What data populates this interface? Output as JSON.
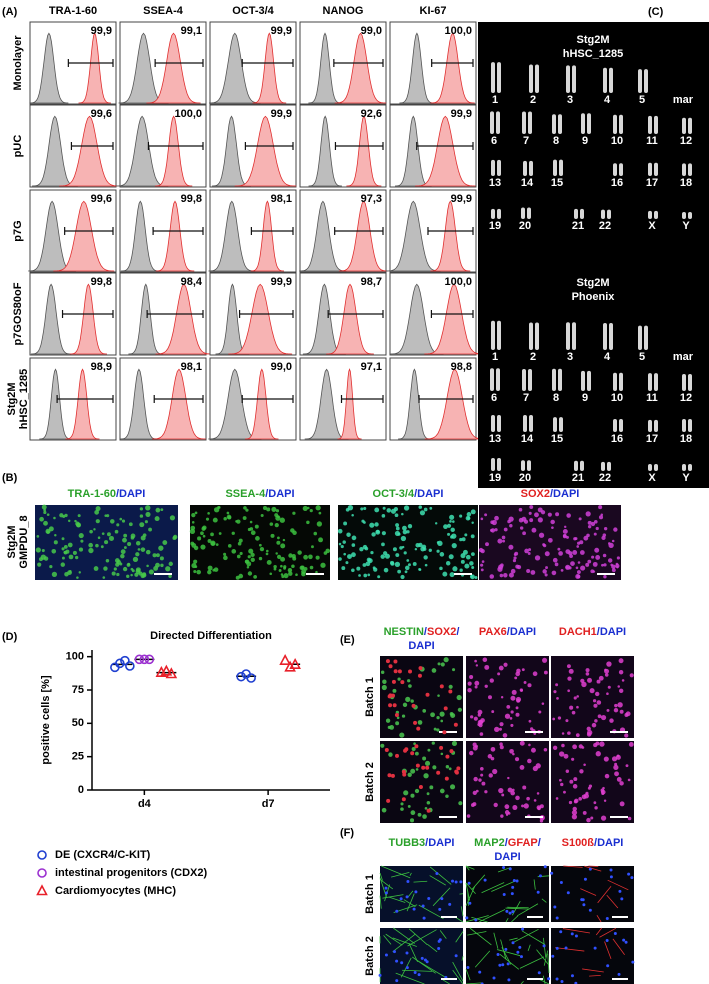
{
  "panel_a": {
    "label": "(A)",
    "columns": [
      "TRA-1-60",
      "SSEA-4",
      "OCT-3/4",
      "NANOG",
      "KI-67"
    ],
    "rows": [
      {
        "label": [
          "Monolayer"
        ],
        "values": [
          "99,9",
          "99,1",
          "99,9",
          "99,0",
          "100,0"
        ]
      },
      {
        "label": [
          "pUC"
        ],
        "values": [
          "99,6",
          "100,0",
          "99,9",
          "92,6",
          "99,9"
        ]
      },
      {
        "label": [
          "p7G"
        ],
        "values": [
          "99,6",
          "99,8",
          "98,1",
          "97,3",
          "99,9"
        ]
      },
      {
        "label": [
          "p7GOS80oF"
        ],
        "values": [
          "99,8",
          "98,4",
          "99,9",
          "98,7",
          "100,0"
        ]
      },
      {
        "label": [
          "Stg2M",
          "hHSC_1285"
        ],
        "values": [
          "98,9",
          "98,1",
          "99,0",
          "97,1",
          "98,8"
        ]
      }
    ]
  },
  "panel_b": {
    "label": "(B)",
    "row_label": [
      "Stg2M",
      "GMPDU_8"
    ],
    "captions": [
      [
        [
          {
            "text": "TRA-1-60",
            "color": "#2aa02a"
          },
          {
            "text": "/DAPI",
            "color": "#1a2fd0"
          }
        ]
      ],
      [
        [
          {
            "text": "SSEA-4",
            "color": "#2aa02a"
          },
          {
            "text": "/DAPI",
            "color": "#1a2fd0"
          }
        ]
      ],
      [
        [
          {
            "text": "OCT-3/4",
            "color": "#2aa02a"
          },
          {
            "text": "/DAPI",
            "color": "#1a2fd0"
          }
        ]
      ],
      [
        [
          {
            "text": "SOX2",
            "color": "#e02020"
          },
          {
            "text": "/DAPI",
            "color": "#1a2fd0"
          }
        ]
      ]
    ]
  },
  "panel_c": {
    "label": "(C)",
    "karyotypes": [
      {
        "title": [
          "Stg2M",
          "hHSC_1285"
        ],
        "rows": [
          [
            "1",
            "2",
            "3",
            "4",
            "5",
            "mar"
          ],
          [
            "6",
            "7",
            "8",
            "9",
            "10",
            "11",
            "12"
          ],
          [
            "13",
            "14",
            "15",
            "16",
            "17",
            "18"
          ],
          [
            "19",
            "20",
            "21",
            "22",
            "X",
            "Y"
          ]
        ]
      },
      {
        "title": [
          "Stg2M",
          "Phoenix"
        ],
        "rows": [
          [
            "1",
            "2",
            "3",
            "4",
            "5",
            "mar"
          ],
          [
            "6",
            "7",
            "8",
            "9",
            "10",
            "11",
            "12"
          ],
          [
            "13",
            "14",
            "15",
            "16",
            "17",
            "18"
          ],
          [
            "19",
            "20",
            "21",
            "22",
            "X",
            "Y"
          ]
        ]
      }
    ]
  },
  "panel_d": {
    "label": "(D)"
  },
  "chart_data": {
    "type": "scatter",
    "title": "Directed Differentiation",
    "y_label": "positive cells [%]",
    "categories": [
      "d4",
      "d7"
    ],
    "ylim": [
      0,
      105
    ],
    "yticks": [
      0,
      25,
      50,
      75,
      100
    ],
    "series": [
      {
        "name": "DE (CXCR4/C-KIT)",
        "color": "#1f3fd0",
        "marker": "circle",
        "x": [
          "d4",
          "d4",
          "d4",
          "d4",
          "d7",
          "d7",
          "d7"
        ],
        "values": [
          92,
          95,
          97,
          93,
          85,
          87,
          84
        ]
      },
      {
        "name": "intestinal progenitors (CDX2)",
        "color": "#9b30d0",
        "marker": "circle",
        "x": [
          "d4",
          "d4",
          "d4"
        ],
        "values": [
          98,
          98,
          98
        ]
      },
      {
        "name": "Cardiomyocytes (MHC)",
        "color": "#e8202a",
        "marker": "triangle",
        "x": [
          "d4",
          "d4",
          "d4",
          "d7",
          "d7",
          "d7"
        ],
        "values": [
          88,
          89,
          87,
          97,
          92,
          94
        ]
      }
    ]
  },
  "panel_e": {
    "label": "(E)",
    "rows": [
      "Batch 1",
      "Batch 2"
    ],
    "captions": [
      [
        [
          {
            "text": "NESTIN",
            "color": "#2aa02a"
          },
          {
            "text": "/",
            "color": "#1a2fd0"
          },
          {
            "text": "SOX2",
            "color": "#e02020"
          },
          {
            "text": "/",
            "color": "#1a2fd0"
          }
        ],
        [
          {
            "text": "DAPI",
            "color": "#1a2fd0"
          }
        ]
      ],
      [
        [
          {
            "text": "PAX6",
            "color": "#e02020"
          },
          {
            "text": "/DAPI",
            "color": "#1a2fd0"
          }
        ]
      ],
      [
        [
          {
            "text": "DACH1",
            "color": "#e02020"
          },
          {
            "text": "/DAPI",
            "color": "#1a2fd0"
          }
        ]
      ]
    ]
  },
  "panel_f": {
    "label": "(F)",
    "rows": [
      "Batch 1",
      "Batch 2"
    ],
    "captions": [
      [
        [
          {
            "text": "TUBB3",
            "color": "#2aa02a"
          },
          {
            "text": "/DAPI",
            "color": "#1a2fd0"
          }
        ]
      ],
      [
        [
          {
            "text": "MAP2",
            "color": "#2aa02a"
          },
          {
            "text": "/",
            "color": "#1a2fd0"
          },
          {
            "text": "GFAP",
            "color": "#e02020"
          },
          {
            "text": "/",
            "color": "#1a2fd0"
          }
        ],
        [
          {
            "text": "DAPI",
            "color": "#1a2fd0"
          }
        ]
      ],
      [
        [
          {
            "text": "S100ß",
            "color": "#e02020"
          },
          {
            "text": "/DAPI",
            "color": "#1a2fd0"
          }
        ]
      ]
    ]
  }
}
